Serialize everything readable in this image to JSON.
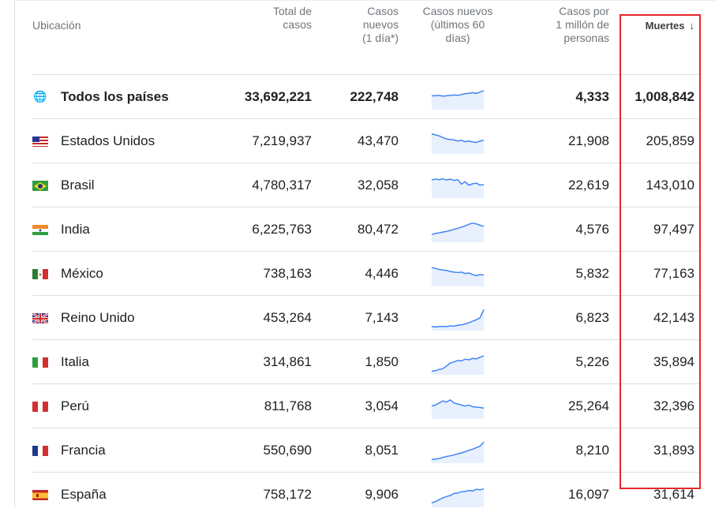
{
  "header": {
    "location": "Ubicación",
    "total_cases": [
      "Total de",
      "casos"
    ],
    "new_cases": [
      "Casos",
      "nuevos",
      "(1 día*)"
    ],
    "trend": [
      "Casos nuevos",
      "(últimos 60",
      "días)"
    ],
    "per_million": [
      "Casos por",
      "1 millón de",
      "personas"
    ],
    "deaths": "Muertes",
    "sort_icon": "arrow-down-icon"
  },
  "colors": {
    "spark_line": "#4285f4",
    "spark_fill": "#e8f0fe",
    "highlight_border": "#e8262c",
    "globe": "#1a73e8"
  },
  "rows": [
    {
      "name": "Todos los países",
      "flag": "globe-icon",
      "total": "33,692,221",
      "new": "222,748",
      "per_million": "4,333",
      "deaths": "1,008,842",
      "trend": [
        0.6,
        0.6,
        0.62,
        0.58,
        0.6,
        0.62,
        0.64,
        0.62,
        0.66,
        0.7,
        0.72,
        0.75,
        0.72,
        0.78,
        0.85
      ]
    },
    {
      "name": "Estados Unidos",
      "flag": "us",
      "total": "7,219,937",
      "new": "43,470",
      "per_million": "21,908",
      "deaths": "205,859",
      "trend": [
        0.9,
        0.85,
        0.8,
        0.72,
        0.65,
        0.62,
        0.6,
        0.55,
        0.58,
        0.52,
        0.55,
        0.5,
        0.48,
        0.55,
        0.58
      ]
    },
    {
      "name": "Brasil",
      "flag": "br",
      "total": "4,780,317",
      "new": "32,058",
      "per_million": "22,619",
      "deaths": "143,010",
      "trend": [
        0.8,
        0.85,
        0.82,
        0.86,
        0.8,
        0.85,
        0.78,
        0.82,
        0.6,
        0.72,
        0.55,
        0.62,
        0.65,
        0.55,
        0.58
      ]
    },
    {
      "name": "India",
      "flag": "in",
      "total": "6,225,763",
      "new": "80,472",
      "per_million": "4,576",
      "deaths": "97,497",
      "trend": [
        0.3,
        0.35,
        0.38,
        0.42,
        0.45,
        0.5,
        0.55,
        0.6,
        0.66,
        0.72,
        0.8,
        0.85,
        0.82,
        0.75,
        0.7
      ]
    },
    {
      "name": "México",
      "flag": "mx",
      "total": "738,163",
      "new": "4,446",
      "per_million": "5,832",
      "deaths": "77,163",
      "trend": [
        0.85,
        0.8,
        0.75,
        0.72,
        0.7,
        0.65,
        0.62,
        0.6,
        0.62,
        0.55,
        0.58,
        0.5,
        0.45,
        0.5,
        0.48
      ]
    },
    {
      "name": "Reino Unido",
      "flag": "gb",
      "total": "453,264",
      "new": "7,143",
      "per_million": "6,823",
      "deaths": "42,143",
      "trend": [
        0.12,
        0.1,
        0.12,
        0.13,
        0.12,
        0.15,
        0.14,
        0.18,
        0.2,
        0.25,
        0.3,
        0.38,
        0.45,
        0.55,
        0.95
      ]
    },
    {
      "name": "Italia",
      "flag": "it",
      "total": "314,861",
      "new": "1,850",
      "per_million": "5,226",
      "deaths": "35,894",
      "trend": [
        0.1,
        0.12,
        0.18,
        0.22,
        0.35,
        0.5,
        0.55,
        0.62,
        0.6,
        0.68,
        0.65,
        0.72,
        0.7,
        0.78,
        0.85
      ]
    },
    {
      "name": "Perú",
      "flag": "pe",
      "total": "811,768",
      "new": "3,054",
      "per_million": "25,264",
      "deaths": "32,396",
      "trend": [
        0.55,
        0.6,
        0.7,
        0.8,
        0.75,
        0.85,
        0.7,
        0.65,
        0.6,
        0.55,
        0.6,
        0.52,
        0.5,
        0.48,
        0.45
      ]
    },
    {
      "name": "Francia",
      "flag": "fr",
      "total": "550,690",
      "new": "8,051",
      "per_million": "8,210",
      "deaths": "31,893",
      "trend": [
        0.1,
        0.12,
        0.15,
        0.2,
        0.25,
        0.28,
        0.32,
        0.38,
        0.42,
        0.48,
        0.55,
        0.6,
        0.68,
        0.75,
        0.95
      ]
    },
    {
      "name": "España",
      "flag": "es",
      "total": "758,172",
      "new": "9,906",
      "per_million": "16,097",
      "deaths": "31,614",
      "trend": [
        0.15,
        0.2,
        0.3,
        0.38,
        0.45,
        0.5,
        0.6,
        0.62,
        0.68,
        0.7,
        0.75,
        0.72,
        0.8,
        0.78,
        0.82
      ]
    }
  ]
}
